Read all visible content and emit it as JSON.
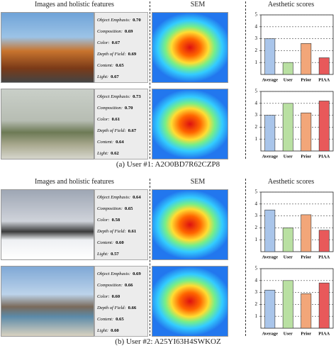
{
  "panels": [
    {
      "header": {
        "images": "Images and holistic features",
        "sem": "SEM",
        "scores": "Aesthetic scores"
      },
      "rows": [
        {
          "features": [
            {
              "name": "Object Emphasis:",
              "value": "0.70"
            },
            {
              "name": "Composition:",
              "value": "0.69"
            },
            {
              "name": "Color:",
              "value": "0.67"
            },
            {
              "name": "Depth of Field:",
              "value": "0.69"
            },
            {
              "name": "Content:",
              "value": "0.65"
            },
            {
              "name": "Light:",
              "value": "0.67"
            }
          ],
          "scores": {
            "type": "bar",
            "categories": [
              "Average",
              "User",
              "Prior",
              "PIAA"
            ],
            "values": [
              3.0,
              1.0,
              2.6,
              1.4
            ],
            "colors": [
              "#a9c5ea",
              "#b9e0a2",
              "#f2a679",
              "#e8595a"
            ],
            "ylim": [
              0,
              5
            ],
            "yticks": [
              1,
              2,
              3,
              4,
              5
            ],
            "grid": true
          }
        },
        {
          "features": [
            {
              "name": "Object Emphasis:",
              "value": "0.73"
            },
            {
              "name": "Composition:",
              "value": "0.70"
            },
            {
              "name": "Color:",
              "value": "0.61"
            },
            {
              "name": "Depth of Field:",
              "value": "0.67"
            },
            {
              "name": "Content:",
              "value": "0.64"
            },
            {
              "name": "Light:",
              "value": "0.62"
            }
          ],
          "scores": {
            "type": "bar",
            "categories": [
              "Average",
              "User",
              "Prior",
              "PIAA"
            ],
            "values": [
              3.0,
              4.0,
              3.2,
              4.2
            ],
            "colors": [
              "#a9c5ea",
              "#b9e0a2",
              "#f2a679",
              "#e8595a"
            ],
            "ylim": [
              0,
              5
            ],
            "yticks": [
              1,
              2,
              3,
              4,
              5
            ],
            "grid": true
          }
        }
      ],
      "caption": "(a) User #1: A2O0BD7R62CZP8"
    },
    {
      "header": {
        "images": "Images and holistic features",
        "sem": "SEM",
        "scores": "Aesthetic scores"
      },
      "rows": [
        {
          "features": [
            {
              "name": "Object Emphasis:",
              "value": "0.64"
            },
            {
              "name": "Composition:",
              "value": "0.65"
            },
            {
              "name": "Color:",
              "value": "0.58"
            },
            {
              "name": "Depth of Field:",
              "value": "0.61"
            },
            {
              "name": "Content:",
              "value": "0.60"
            },
            {
              "name": "Light:",
              "value": "0.57"
            }
          ],
          "scores": {
            "type": "bar",
            "categories": [
              "Average",
              "User",
              "Prior",
              "PIAA"
            ],
            "values": [
              3.5,
              2.0,
              3.1,
              1.8
            ],
            "colors": [
              "#a9c5ea",
              "#b9e0a2",
              "#f2a679",
              "#e8595a"
            ],
            "ylim": [
              0,
              5
            ],
            "yticks": [
              1,
              2,
              3,
              4,
              5
            ],
            "grid": true
          }
        },
        {
          "features": [
            {
              "name": "Object Emphasis:",
              "value": "0.69"
            },
            {
              "name": "Composition:",
              "value": "0.66"
            },
            {
              "name": "Color:",
              "value": "0.60"
            },
            {
              "name": "Depth of Field:",
              "value": "0.66"
            },
            {
              "name": "Content:",
              "value": "0.65"
            },
            {
              "name": "Light:",
              "value": "0.60"
            }
          ],
          "scores": {
            "type": "bar",
            "categories": [
              "Average",
              "User",
              "Prior",
              "PIAA"
            ],
            "values": [
              3.2,
              4.0,
              2.9,
              3.8
            ],
            "colors": [
              "#a9c5ea",
              "#b9e0a2",
              "#f2a679",
              "#e8595a"
            ],
            "ylim": [
              0,
              5
            ],
            "yticks": [
              1,
              2,
              3,
              4,
              5
            ],
            "grid": true
          }
        }
      ],
      "caption": "(b) User #2: A25YI63H4SWKOZ"
    }
  ]
}
